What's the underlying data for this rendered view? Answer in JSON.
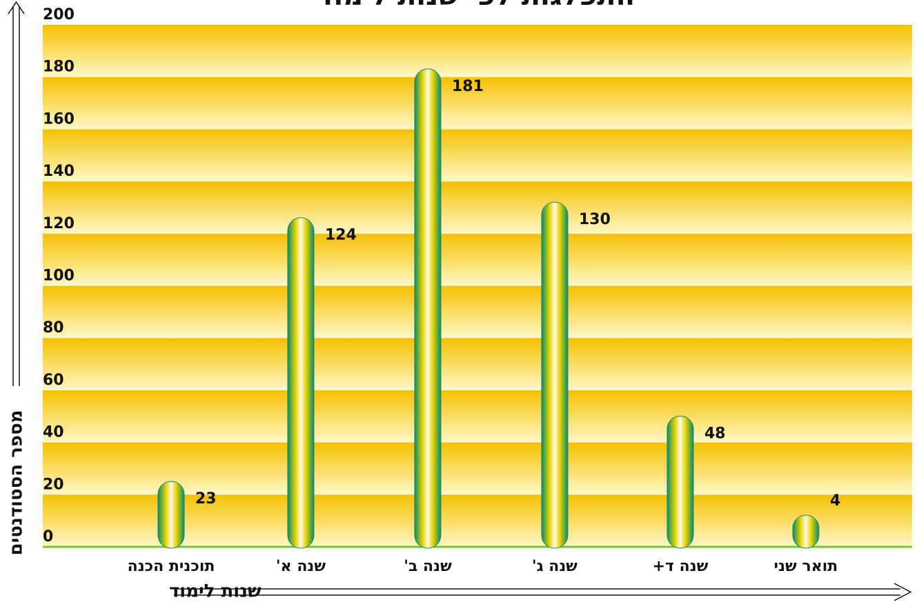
{
  "chart_data": {
    "type": "bar",
    "title": "התפלגות לפי שנות לימוד",
    "x_label": "שנות לימוד",
    "y_label": "מספר הסטודנטים",
    "categories": [
      "תוכנית הכנה",
      "שנה א'",
      "שנה ב'",
      "שנה ג'",
      "שנה ד+",
      "תואר שני"
    ],
    "values": [
      23,
      124,
      181,
      130,
      48,
      4
    ],
    "ylim": [
      0,
      200
    ],
    "yticks": [
      0,
      20,
      40,
      60,
      80,
      100,
      120,
      140,
      160,
      180,
      200
    ],
    "grid": true,
    "color": "#0a8a6a"
  }
}
